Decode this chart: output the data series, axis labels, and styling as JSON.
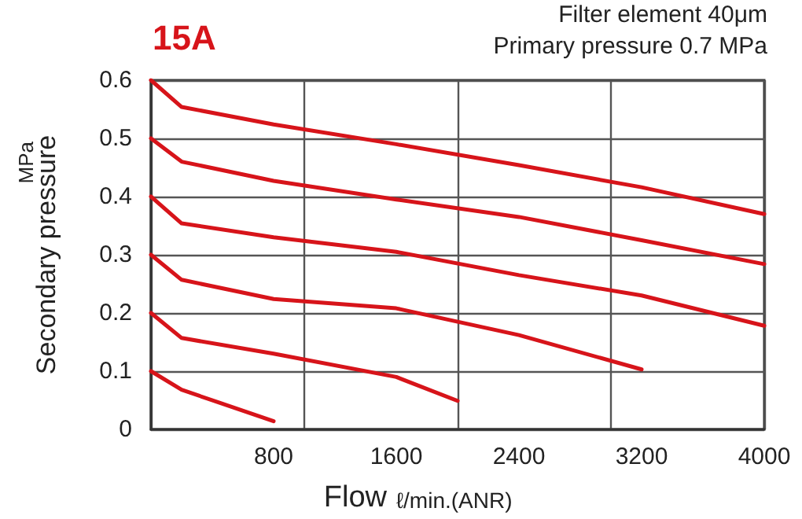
{
  "chart_data": {
    "type": "line",
    "title": "15A",
    "xlabel": "Flow",
    "ylabel": "Secondary pressure",
    "annotations": [
      "Filter element 40μm",
      "Primary pressure 0.7 MPa",
      "MPa",
      "ℓ/min.(ANR)"
    ],
    "series": [
      {
        "color": "#d7141a",
        "x": [
          0,
          200,
          800,
          1600,
          2400,
          3200,
          4000
        ],
        "values": [
          0.6,
          0.554,
          0.524,
          0.49,
          0.454,
          0.416,
          0.37
        ]
      },
      {
        "color": "#d7141a",
        "x": [
          0,
          200,
          800,
          1600,
          2400,
          3200,
          4000
        ],
        "values": [
          0.5,
          0.46,
          0.427,
          0.395,
          0.365,
          0.325,
          0.284
        ]
      },
      {
        "color": "#d7141a",
        "x": [
          0,
          200,
          800,
          1600,
          2400,
          3200,
          4000
        ],
        "values": [
          0.4,
          0.354,
          0.33,
          0.305,
          0.265,
          0.23,
          0.178
        ]
      },
      {
        "color": "#d7141a",
        "x": [
          0,
          200,
          800,
          1600,
          2400,
          3200
        ],
        "values": [
          0.3,
          0.257,
          0.224,
          0.208,
          0.162,
          0.103
        ]
      },
      {
        "color": "#d7141a",
        "x": [
          0,
          200,
          800,
          1600,
          2000
        ],
        "values": [
          0.2,
          0.157,
          0.13,
          0.09,
          0.049
        ]
      },
      {
        "color": "#d7141a",
        "x": [
          0,
          200,
          800
        ],
        "values": [
          0.1,
          0.068,
          0.014
        ]
      }
    ],
    "xlim": [
      0,
      4000
    ],
    "xticks": [
      800,
      1600,
      2400,
      3200,
      4000
    ],
    "ylim": [
      0,
      0.6
    ],
    "yticks": [
      0,
      0.1,
      0.2,
      0.3,
      0.4,
      0.5,
      0.6
    ],
    "grid": true,
    "marker": "none",
    "line_style": "solid"
  }
}
